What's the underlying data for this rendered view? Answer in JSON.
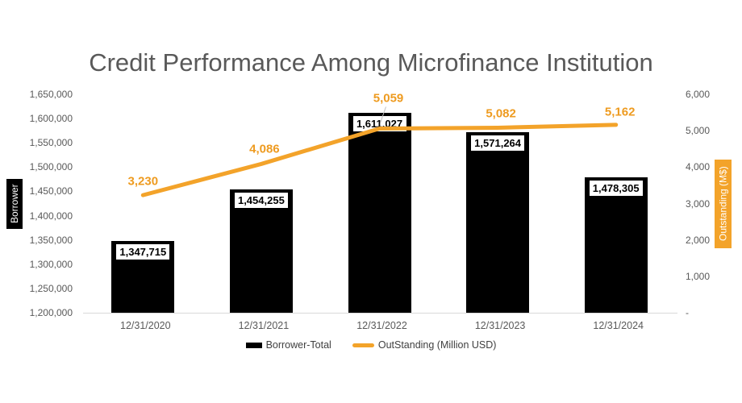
{
  "chart_data": {
    "type": "combo",
    "title": "Credit Performance Among Microfinance Institution",
    "categories": [
      "12/31/2020",
      "12/31/2021",
      "12/31/2022",
      "12/31/2023",
      "12/31/2024"
    ],
    "series": [
      {
        "name": "Borrower-Total",
        "type": "bar",
        "axis": "left",
        "values": [
          1347715,
          1454255,
          1611027,
          1571264,
          1478305
        ],
        "data_labels": [
          "1,347,715",
          "1,454,255",
          "1,611,027",
          "1,571,264",
          "1,478,305"
        ]
      },
      {
        "name": "OutStanding (Million USD)",
        "type": "line",
        "axis": "right",
        "values": [
          3230,
          4086,
          5059,
          5082,
          5162
        ],
        "data_labels": [
          "3,230",
          "4,086",
          "5,059",
          "5,082",
          "5,162"
        ]
      }
    ],
    "left_axis": {
      "title": "Borrower",
      "min": 1200000,
      "max": 1650000,
      "step": 50000,
      "tick_labels": [
        "1,650,000",
        "1,600,000",
        "1,550,000",
        "1,500,000",
        "1,450,000",
        "1,400,000",
        "1,350,000",
        "1,300,000",
        "1,250,000",
        "1,200,000"
      ]
    },
    "right_axis": {
      "title": "Outstanding (M$)",
      "min": 0,
      "max": 6000,
      "step": 1000,
      "zero_label": "-",
      "tick_labels": [
        "6,000",
        "5,000",
        "4,000",
        "3,000",
        "2,000",
        "1,000",
        "-"
      ]
    },
    "grid": false,
    "legend_position": "bottom",
    "layout": {
      "line_label_dx": [
        0,
        4,
        11,
        4,
        5
      ],
      "line_label_dy": [
        -17,
        -18,
        -38,
        -17,
        -16
      ],
      "callout_index": 2
    }
  },
  "colors": {
    "bar": "#000000",
    "line": "#F3A32A",
    "line_label_text": "#EE9B20",
    "title_text": "#595959",
    "axis_text": "#595959",
    "legend_text": "#404040",
    "axis_line": "#D9D9D9",
    "bar_label_bg": "#FFFFFF",
    "bar_label_border": "#000000",
    "left_axis_title_bg": "#000000",
    "right_axis_title_bg": "#F3A32A",
    "axis_title_text": "#FFFFFF",
    "leader_line": "#BFBFBF"
  }
}
